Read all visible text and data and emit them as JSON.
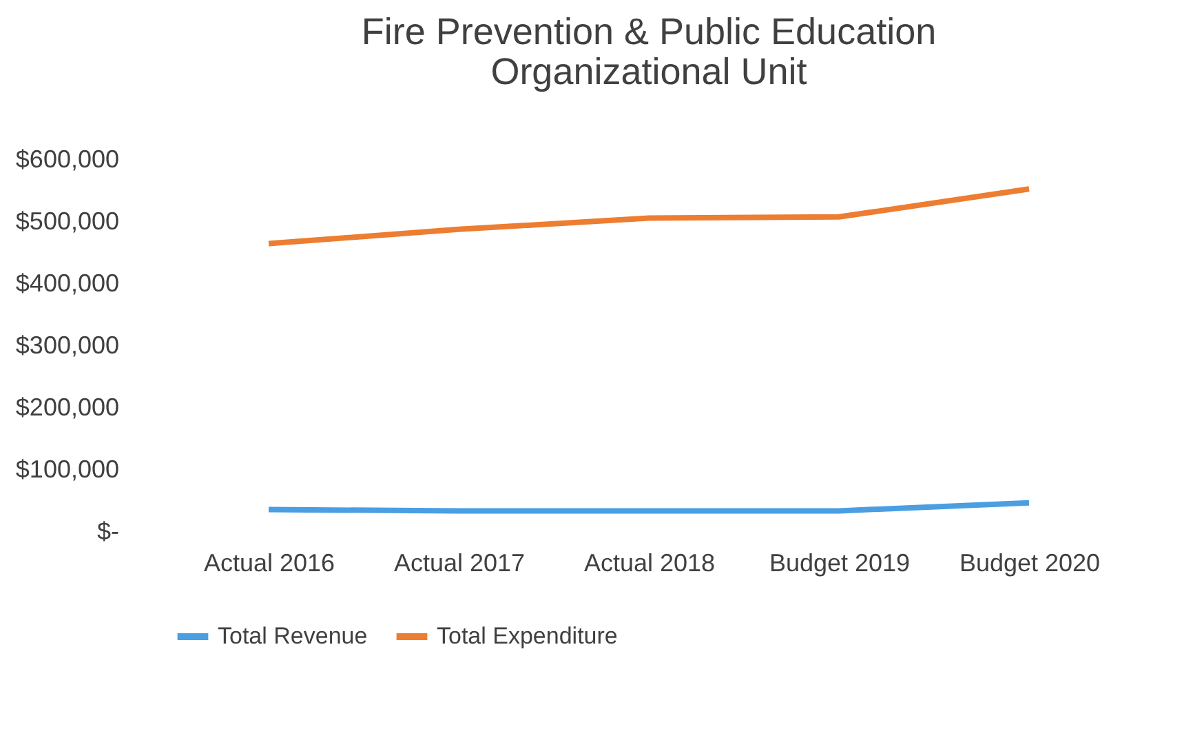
{
  "chart_data": {
    "type": "line",
    "title": [
      "Fire Prevention & Public Education",
      "Organizational Unit"
    ],
    "categories": [
      "Actual 2016",
      "Actual 2017",
      "Actual 2018",
      "Budget 2019",
      "Budget 2020"
    ],
    "series": [
      {
        "name": "Total Revenue",
        "color": "#4a9ee2",
        "values": [
          36000,
          34000,
          34000,
          34000,
          47000
        ]
      },
      {
        "name": "Total Expenditure",
        "color": "#ed7d31",
        "values": [
          465000,
          488000,
          506000,
          508000,
          553000
        ]
      }
    ],
    "ylim": [
      0,
      600000
    ],
    "yticks": [
      {
        "value": 0,
        "label": "$-"
      },
      {
        "value": 100000,
        "label": "$100,000"
      },
      {
        "value": 200000,
        "label": "$200,000"
      },
      {
        "value": 300000,
        "label": "$300,000"
      },
      {
        "value": 400000,
        "label": "$400,000"
      },
      {
        "value": 500000,
        "label": "$500,000"
      },
      {
        "value": 600000,
        "label": "$600,000"
      }
    ],
    "grid": false,
    "legend": "bottom",
    "marker": "none",
    "line_style": "solid"
  }
}
